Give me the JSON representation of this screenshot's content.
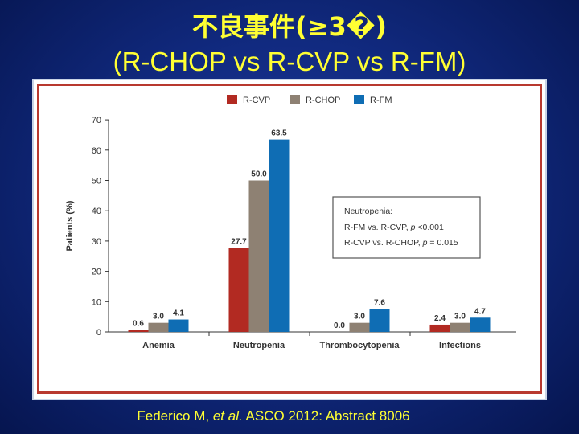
{
  "slide": {
    "title_line1": "不良事件(≥3�)",
    "title_line2": "(R-CHOP vs R-CVP vs R-FM)",
    "citation_prefix": "Federico M, ",
    "citation_italic": "et al.",
    "citation_suffix": " ASCO 2012: Abstract 8006",
    "title_color": "#ffff33"
  },
  "chart_data": {
    "type": "bar",
    "ylabel": "Patients (%)",
    "ylim": [
      0,
      70
    ],
    "yticks": [
      0,
      10,
      20,
      30,
      40,
      50,
      60,
      70
    ],
    "categories": [
      "Anemia",
      "Neutropenia",
      "Thrombocytopenia",
      "Infections"
    ],
    "series": [
      {
        "name": "R-CVP",
        "color": "#b22a22",
        "values": [
          0.6,
          27.7,
          0.0,
          2.4
        ],
        "labels": [
          "0.6",
          "27.7",
          "0.0",
          "2.4"
        ]
      },
      {
        "name": "R-CHOP",
        "color": "#8e8173",
        "values": [
          3.0,
          50.0,
          3.0,
          3.0
        ],
        "labels": [
          "3.0",
          "50.0",
          "3.0",
          "3.0"
        ]
      },
      {
        "name": "R-FM",
        "color": "#0f6db4",
        "values": [
          4.1,
          63.5,
          7.6,
          4.7
        ],
        "labels": [
          "4.1",
          "63.5",
          "7.6",
          "4.7"
        ]
      }
    ],
    "legend_position": "top-center",
    "annotation": {
      "line1": "Neutropenia:",
      "line2_a": "R-FM vs. R-CVP, ",
      "line2_p": "p",
      "line2_b": " <0.001",
      "line3_a": "R-CVP vs. R-CHOP, ",
      "line3_p": "p",
      "line3_b": " = 0.015"
    }
  }
}
